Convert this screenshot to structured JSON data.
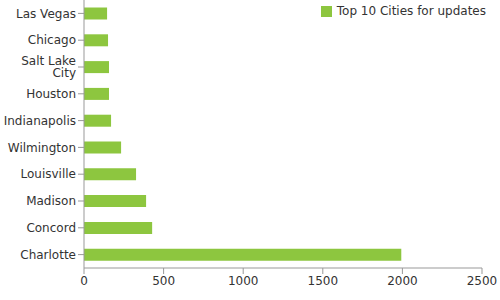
{
  "chart_data": {
    "type": "bar",
    "orientation": "horizontal",
    "series": [
      {
        "name": "Top 10 Cities for updates",
        "color": "#8dc63f",
        "values": [
          145,
          151,
          157,
          157,
          170,
          233,
          327,
          390,
          428,
          1993
        ]
      }
    ],
    "categories": [
      "Las Vegas",
      "Chicago",
      "Salt Lake City",
      "Houston",
      "Indianapolis",
      "Wilmington",
      "Louisville",
      "Madison",
      "Concord",
      "Charlotte"
    ],
    "xlim": [
      0,
      2500
    ],
    "xticks": [
      0,
      500,
      1000,
      1500,
      2000,
      2500
    ],
    "grid": false,
    "legend": "top-right"
  }
}
